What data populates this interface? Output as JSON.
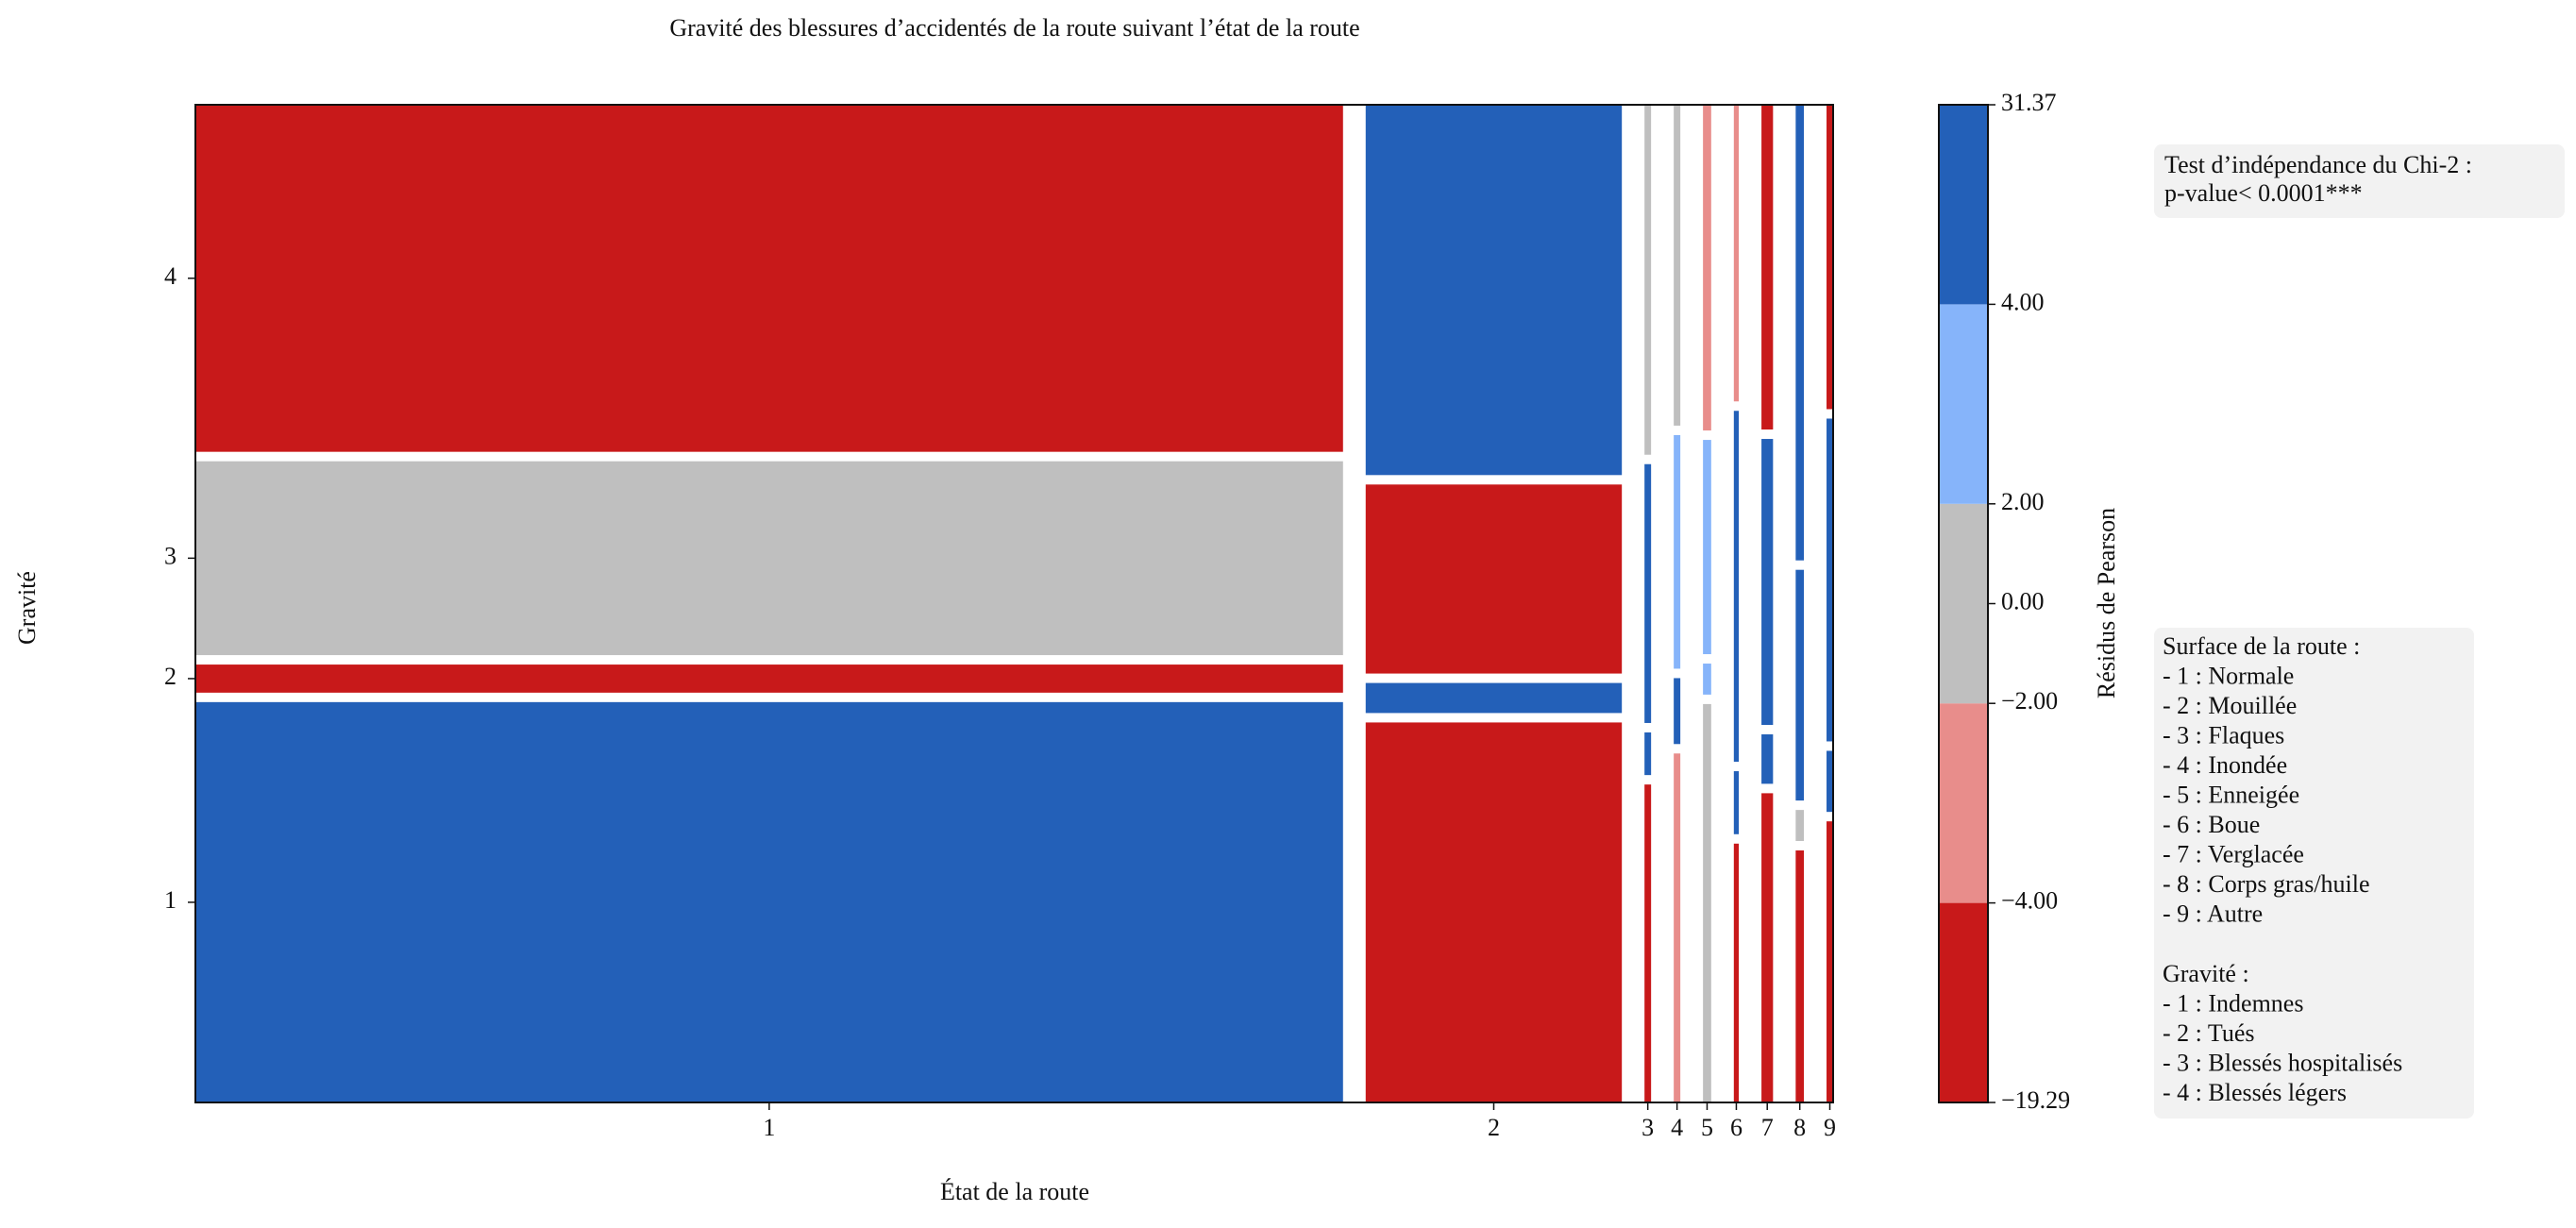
{
  "chart_data": {
    "type": "mosaic",
    "title": "Gravité des blessures d’accidentés de la route suivant l’état de la route",
    "xlabel": "État de la route",
    "ylabel": "Gravité",
    "categories": [
      "1",
      "2",
      "3",
      "4",
      "5",
      "6",
      "7",
      "8",
      "9"
    ],
    "levels": [
      "1",
      "2",
      "3",
      "4"
    ],
    "widths": [
      0.784,
      0.175,
      0.0045,
      0.0045,
      0.0056,
      0.0034,
      0.0079,
      0.0056,
      0.0045
    ],
    "heights": [
      [
        0.413,
        0.029,
        0.2,
        0.358
      ],
      [
        0.392,
        0.031,
        0.195,
        0.382
      ],
      [
        0.328,
        0.044,
        0.267,
        0.361
      ],
      [
        0.36,
        0.068,
        0.241,
        0.331
      ],
      [
        0.411,
        0.032,
        0.221,
        0.336
      ],
      [
        0.267,
        0.065,
        0.362,
        0.306
      ],
      [
        0.319,
        0.051,
        0.295,
        0.335
      ],
      [
        0.26,
        0.032,
        0.238,
        0.47
      ],
      [
        0.29,
        0.063,
        0.333,
        0.314
      ]
    ],
    "residuals": [
      [
        20,
        -10,
        1,
        -15
      ],
      [
        -12,
        8,
        -8,
        20
      ],
      [
        -6,
        5,
        6,
        0.5
      ],
      [
        -3,
        5,
        3,
        -1
      ],
      [
        1,
        3,
        3,
        -3
      ],
      [
        -6,
        5,
        6,
        -3
      ],
      [
        -6,
        5,
        6,
        -6
      ],
      [
        -6,
        1,
        6,
        6
      ],
      [
        -6,
        5,
        6,
        -6
      ]
    ],
    "colorbar": {
      "label": "Résidus de Pearson",
      "bounds": [
        -19.29,
        -4,
        -2,
        2,
        4,
        31.37
      ],
      "colors": [
        "#c8191a",
        "#e88d8b",
        "#bfbfbf",
        "#86b4fa",
        "#2360b8"
      ],
      "ticks": [
        {
          "value": 31.37,
          "label": "31.37"
        },
        {
          "value": 4,
          "label": "4.00"
        },
        {
          "value": 2,
          "label": "2.00"
        },
        {
          "value": 0,
          "label": "0.00"
        },
        {
          "value": -2,
          "label": "−2.00"
        },
        {
          "value": -4,
          "label": "−4.00"
        },
        {
          "value": -19.29,
          "label": "−19.29"
        }
      ]
    },
    "test_box": [
      "Test d’indépendance du Chi-2 :",
      "p-value< 0.0001***"
    ],
    "surface_legend": [
      "Surface de la route :",
      "- 1 : Normale",
      "- 2 : Mouillée",
      "- 3 : Flaques",
      "- 4 : Inondée",
      "- 5 : Enneigée",
      "- 6 : Boue",
      "- 7 : Verglacée",
      "- 8 : Corps gras/huile",
      "- 9 : Autre"
    ],
    "gravite_legend": [
      "Gravité :",
      "- 1 : Indemnes",
      "- 2 : Tués",
      "- 3 : Blessés hospitalisés",
      "- 4 : Blessés légers"
    ]
  }
}
